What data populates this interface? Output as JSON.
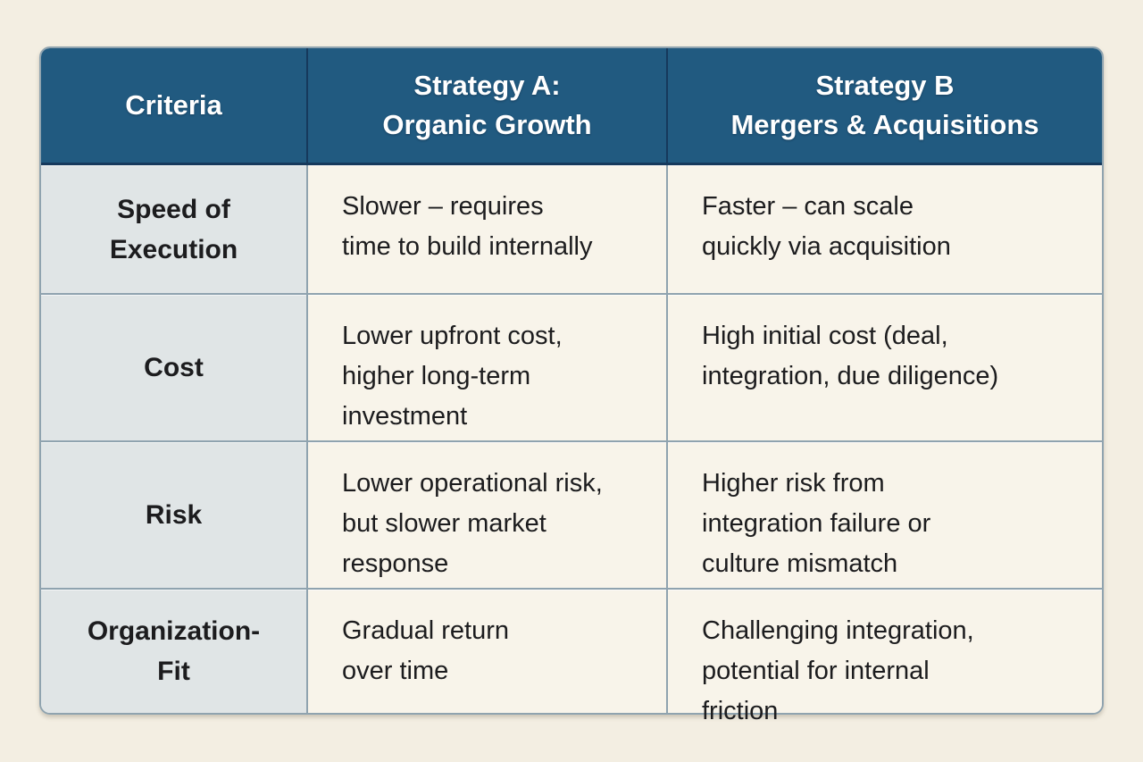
{
  "colors": {
    "page_bg": "#f3eee2",
    "header_bg": "#215a80",
    "header_text": "#ffffff",
    "header_line": "#16395c",
    "label_bg": "#e0e5e6",
    "cell_bg": "#f8f4ea",
    "grid_line": "#8fa3af",
    "text": "#1c1c1e"
  },
  "table": {
    "header": {
      "criteria": "Criteria",
      "strategy_a": "Strategy A:\nOrganic Growth",
      "strategy_b": "Strategy B\nMergers & Acquisitions"
    },
    "rows": [
      {
        "criterion": "Speed of\nExecution",
        "strategy_a": "Slower – requires\ntime to build internally",
        "strategy_b": "Faster – can scale\nquickly via acquisition"
      },
      {
        "criterion": "Cost",
        "strategy_a": "Lower upfront cost,\nhigher long-term\ninvestment",
        "strategy_b": "High initial cost (deal,\nintegration, due diligence)"
      },
      {
        "criterion": "Risk",
        "strategy_a": "Lower operational risk,\nbut slower market\nresponse",
        "strategy_b": "Higher risk from\nintegration failure or\nculture mismatch"
      },
      {
        "criterion": "Organization-\nFit",
        "strategy_a": "Gradual return\nover time",
        "strategy_b": "Challenging integration,\npotential for internal\nfriction"
      }
    ]
  }
}
